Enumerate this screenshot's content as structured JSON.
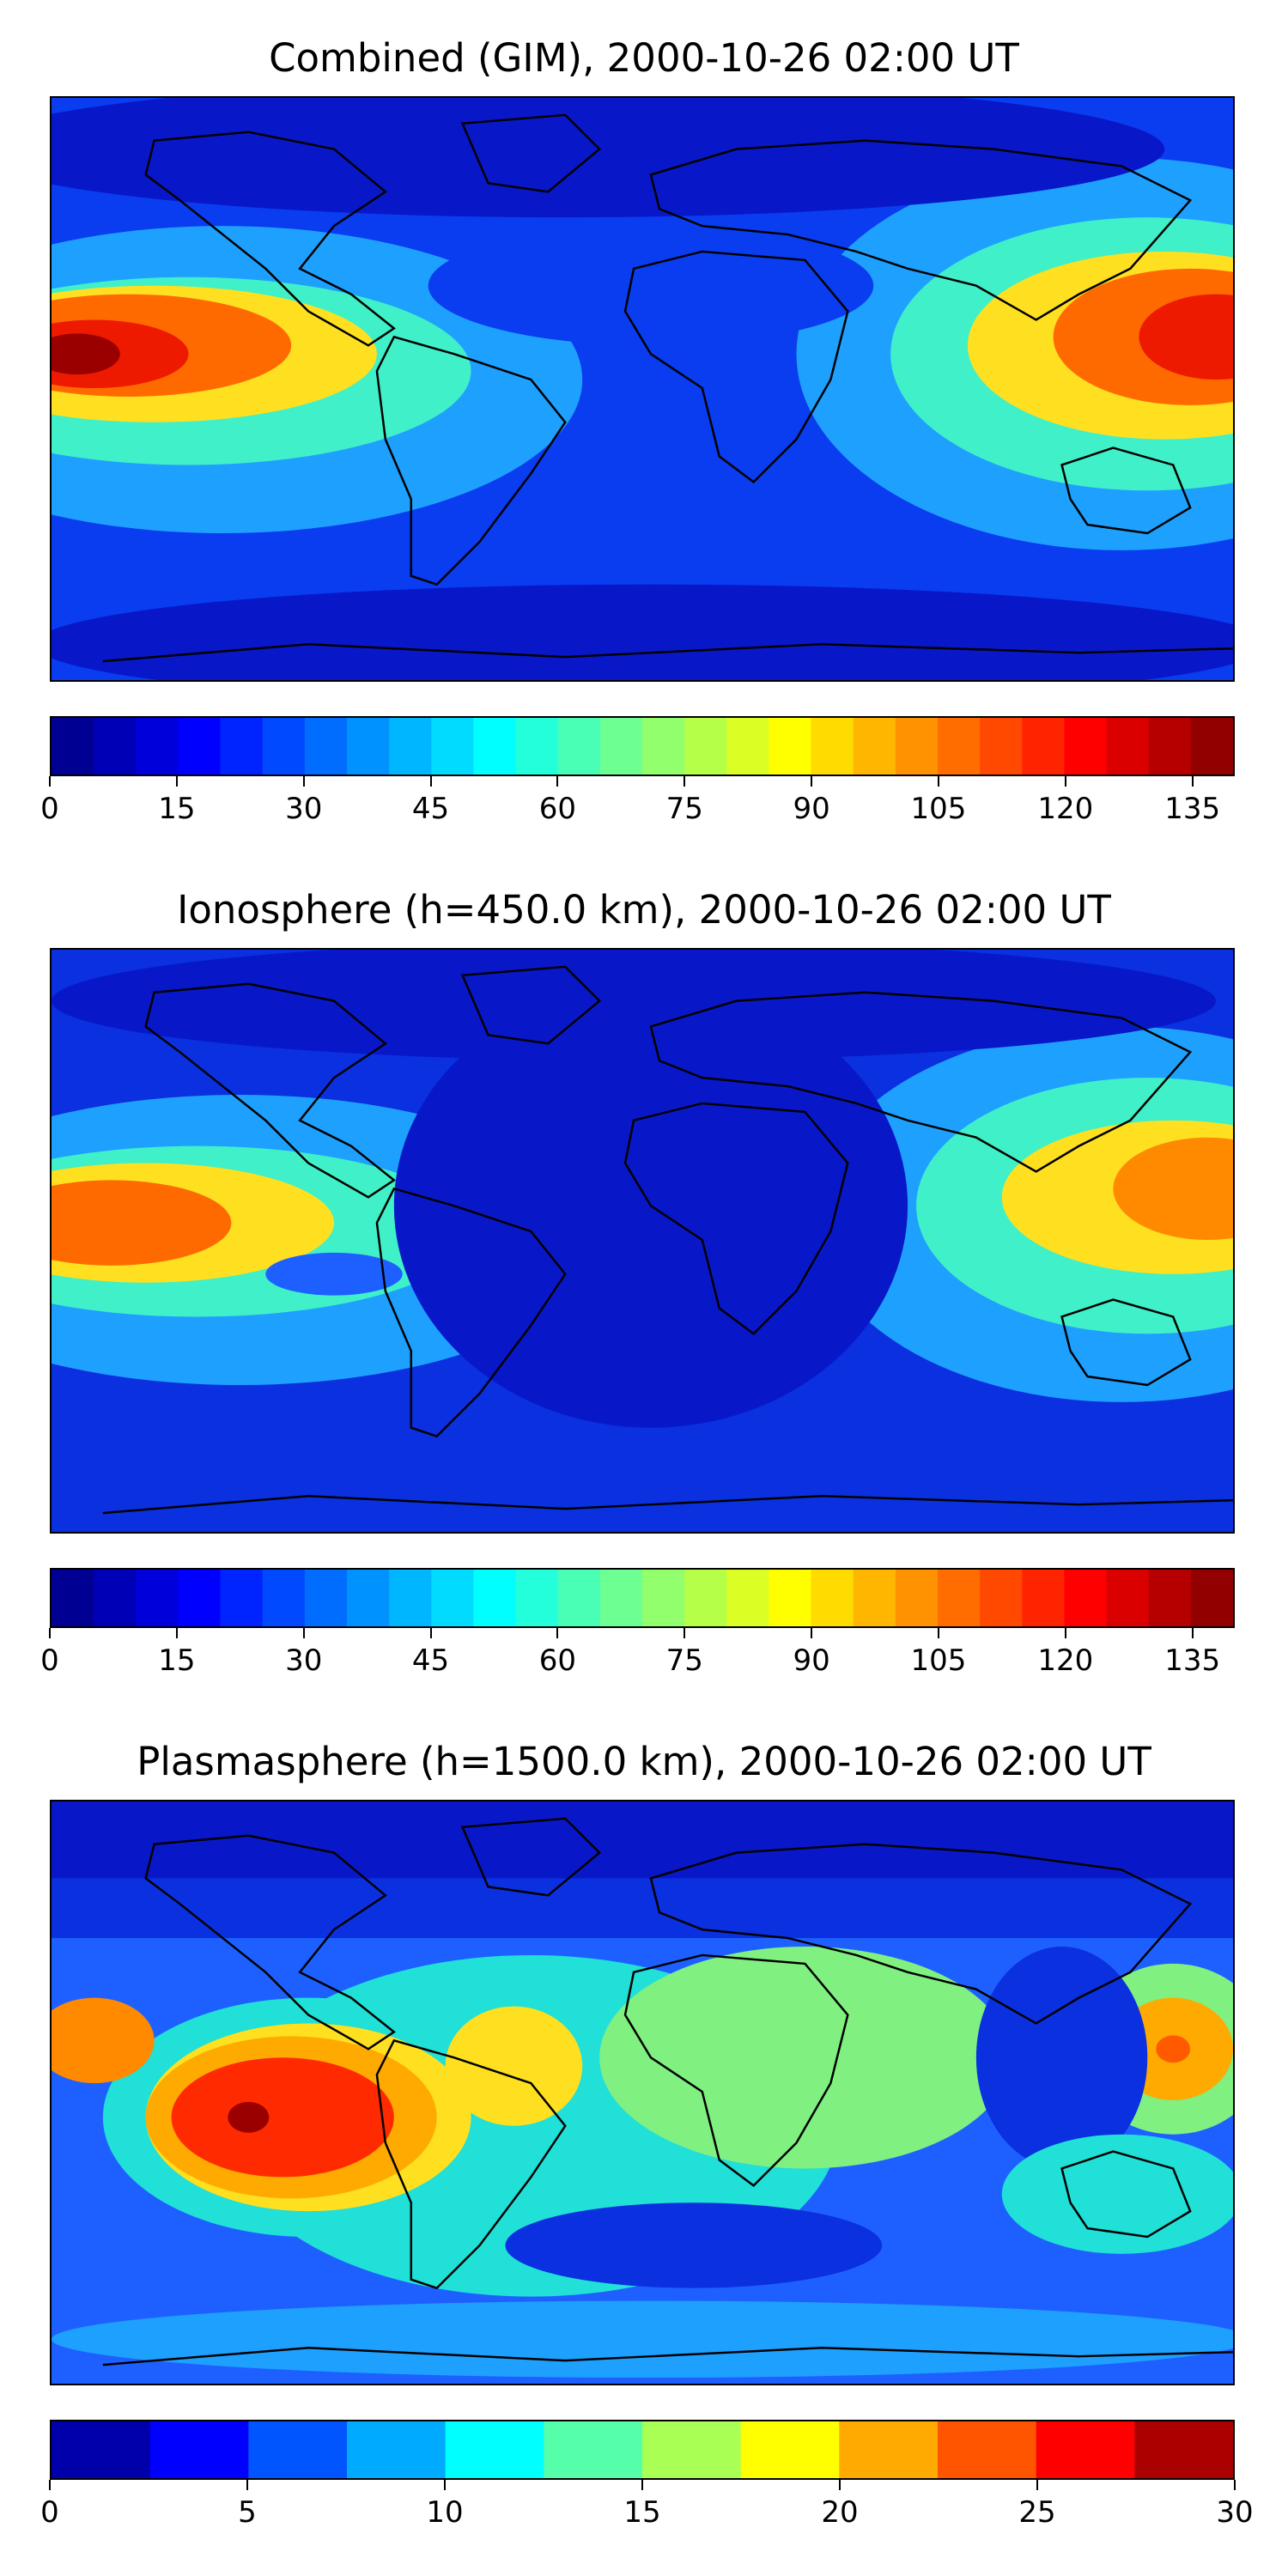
{
  "panels": [
    {
      "title": "Combined (GIM), 2000-10-26 02:00 UT",
      "colorbar": {
        "min": 0,
        "max": 140,
        "step": 5,
        "tick_labels": [
          "0",
          "15",
          "30",
          "45",
          "60",
          "75",
          "90",
          "105",
          "120",
          "135"
        ],
        "tick_values": [
          0,
          15,
          30,
          45,
          60,
          75,
          90,
          105,
          120,
          135
        ]
      }
    },
    {
      "title": "Ionosphere  (h=450.0 km), 2000-10-26 02:00 UT",
      "colorbar": {
        "min": 0,
        "max": 140,
        "step": 5,
        "tick_labels": [
          "0",
          "15",
          "30",
          "45",
          "60",
          "75",
          "90",
          "105",
          "120",
          "135"
        ],
        "tick_values": [
          0,
          15,
          30,
          45,
          60,
          75,
          90,
          105,
          120,
          135
        ]
      }
    },
    {
      "title": "Plasmasphere (h=1500.0 km), 2000-10-26 02:00 UT",
      "colorbar": {
        "min": 0,
        "max": 30,
        "step": 2.5,
        "tick_labels": [
          "0",
          "5",
          "10",
          "15",
          "20",
          "25",
          "30"
        ],
        "tick_values": [
          0,
          5,
          10,
          15,
          20,
          25,
          30
        ]
      }
    }
  ],
  "colormap": "jet",
  "colors": {
    "background": "#ffffff",
    "coastline": "#000000"
  }
}
